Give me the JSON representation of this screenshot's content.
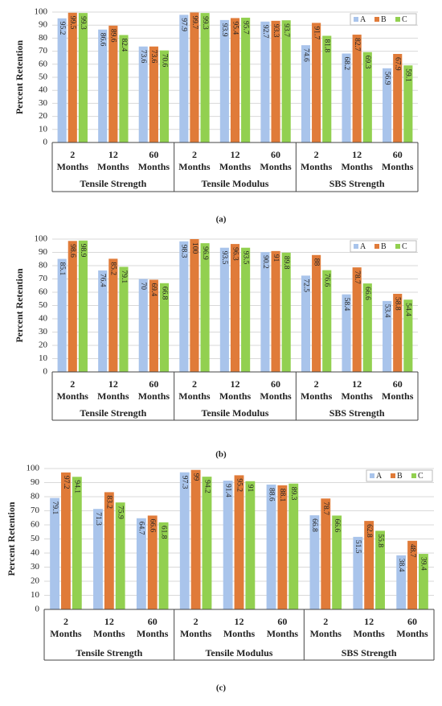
{
  "chart_data": [
    {
      "type": "bar",
      "caption": "(a)",
      "ylabel": "Percent Retention",
      "groups": [
        {
          "name": "Tensile Strength",
          "categories": [
            "2 Months",
            "12 Months",
            "60 Months"
          ]
        },
        {
          "name": "Tensile Modulus",
          "categories": [
            "2 Months",
            "12 Months",
            "60 Months"
          ]
        },
        {
          "name": "SBS Strength",
          "categories": [
            "2 Months",
            "12 Months",
            "60 Months"
          ]
        }
      ],
      "series": [
        {
          "name": "A",
          "color": "#a9c4eb",
          "values": [
            95.2,
            86.6,
            73.6,
            97.9,
            93.9,
            92.7,
            74.6,
            68.2,
            56.9
          ]
        },
        {
          "name": "B",
          "color": "#e07b39",
          "values": [
            99.5,
            89.6,
            73.6,
            99.7,
            95.4,
            93.3,
            91.7,
            82.7,
            67.9
          ]
        },
        {
          "name": "C",
          "color": "#92d050",
          "values": [
            99.3,
            82.4,
            70.6,
            99.3,
            95.7,
            93.7,
            81.8,
            69.3,
            59.1
          ]
        }
      ],
      "ylim": [
        0,
        100
      ],
      "yticks": [
        0,
        10,
        20,
        30,
        40,
        50,
        60,
        70,
        80,
        90,
        100
      ],
      "legend": "upper right"
    },
    {
      "type": "bar",
      "caption": "(b)",
      "ylabel": "Percent Retention",
      "groups": [
        {
          "name": "Tensile Strength",
          "categories": [
            "2 Months",
            "12 Months",
            "60 Months"
          ]
        },
        {
          "name": "Tensile Modulus",
          "categories": [
            "2 Months",
            "12 Months",
            "60 Months"
          ]
        },
        {
          "name": "SBS Strength",
          "categories": [
            "2 Months",
            "12 Months",
            "60 Months"
          ]
        }
      ],
      "series": [
        {
          "name": "A",
          "color": "#a9c4eb",
          "values": [
            85.1,
            76.4,
            70,
            98.3,
            93.5,
            90.2,
            72.5,
            58.4,
            53.4
          ]
        },
        {
          "name": "B",
          "color": "#e07b39",
          "values": [
            98.6,
            85.2,
            69.4,
            100,
            96.3,
            91,
            88,
            78.7,
            58.8
          ]
        },
        {
          "name": "C",
          "color": "#92d050",
          "values": [
            98.9,
            79.1,
            66.8,
            96.9,
            93.5,
            89.8,
            76.6,
            66.6,
            54.4
          ]
        }
      ],
      "ylim": [
        0,
        100
      ],
      "yticks": [
        0,
        10,
        20,
        30,
        40,
        50,
        60,
        70,
        80,
        90,
        100
      ],
      "legend": "upper right"
    },
    {
      "type": "bar",
      "caption": "(c)",
      "ylabel": "Percent Retention",
      "groups": [
        {
          "name": "Tensile Strength",
          "categories": [
            "2 Months",
            "12 Months",
            "60 Months"
          ]
        },
        {
          "name": "Tensile Modulus",
          "categories": [
            "2 Months",
            "12 Months",
            "60 Months"
          ]
        },
        {
          "name": "SBS Strength",
          "categories": [
            "2 Months",
            "12 Months",
            "60 Months"
          ]
        }
      ],
      "series": [
        {
          "name": "A",
          "color": "#a9c4eb",
          "values": [
            79.1,
            71.3,
            64.7,
            97.3,
            91.4,
            88.6,
            66.8,
            51.5,
            38.4
          ]
        },
        {
          "name": "B",
          "color": "#e07b39",
          "values": [
            97.2,
            83.2,
            66.6,
            99,
            95.2,
            88.1,
            78.7,
            62.8,
            48.7
          ]
        },
        {
          "name": "C",
          "color": "#92d050",
          "values": [
            94.1,
            75.9,
            61.8,
            94.2,
            91,
            89.3,
            66.6,
            55.8,
            39.4
          ]
        }
      ],
      "ylim": [
        0,
        100
      ],
      "yticks": [
        0,
        10,
        20,
        30,
        40,
        50,
        60,
        70,
        80,
        90,
        100
      ],
      "legend": "upper right"
    }
  ]
}
